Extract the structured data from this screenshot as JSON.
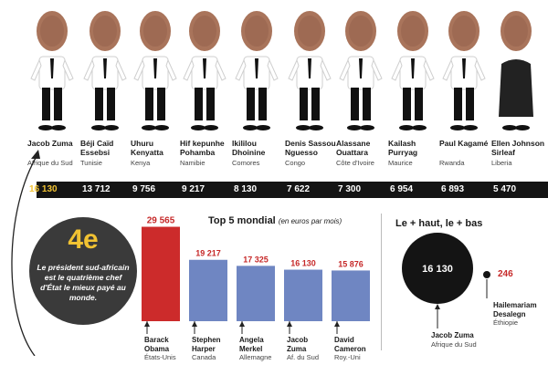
{
  "leaders": [
    {
      "name": "Jacob Zuma",
      "country": "Afrique du Sud",
      "salary": "16 130",
      "highlight": true
    },
    {
      "name": "Béji Caïd Essebsi",
      "country": "Tunisie",
      "salary": "13 712",
      "highlight": false
    },
    {
      "name": "Uhuru Kenyatta",
      "country": "Kenya",
      "salary": "9 756",
      "highlight": false
    },
    {
      "name": "Hif kepunhe Pohamba",
      "country": "Namibie",
      "salary": "9 217",
      "highlight": false
    },
    {
      "name": "Ikililou Dhoinine",
      "country": "Comores",
      "salary": "8 130",
      "highlight": false
    },
    {
      "name": "Denis Sassou Nguesso",
      "country": "Congo",
      "salary": "7 622",
      "highlight": false
    },
    {
      "name": "Alassane Ouattara",
      "country": "Côte d'Ivoire",
      "salary": "7 300",
      "highlight": false
    },
    {
      "name": "Kailash Purryag",
      "country": "Maurice",
      "salary": "6 954",
      "highlight": false
    },
    {
      "name": "Paul Kagamé",
      "country": "Rwanda",
      "salary": "6 893",
      "highlight": false
    },
    {
      "name": "Ellen Johnson Sirleaf",
      "country": "Liberia",
      "salary": "5 470",
      "highlight": false
    }
  ],
  "callout": {
    "rank": "4e",
    "text": "Le président sud-africain est le quatrième chef d'État le mieux payé au monde."
  },
  "top5": {
    "title": "Top 5 mondial",
    "subtitle": "(en euros par mois)"
  },
  "extremes": {
    "title": "Le + haut, le + bas",
    "high": {
      "name": "Jacob Zuma",
      "country": "Afrique du Sud",
      "value": "16 130"
    },
    "low": {
      "name": "Hailemariam Desalegn",
      "country": "Éthiopie",
      "value": "246"
    }
  },
  "colors": {
    "highlight": "#cc2b2b",
    "bars": "#6f86c2",
    "dark": "#141414",
    "gold": "#f1c232"
  },
  "chart_data": {
    "type": "bar",
    "title": "Top 5 mondial",
    "subtitle": "(en euros par mois)",
    "categories": [
      "Barack Obama",
      "Stephen Harper",
      "Angela Merkel",
      "Jacob Zuma",
      "David Cameron"
    ],
    "countries": [
      "États-Unis",
      "Canada",
      "Allemagne",
      "Af. du Sud",
      "Roy.-Uni"
    ],
    "values": [
      29565,
      19217,
      17325,
      16130,
      15876
    ],
    "labels": [
      "29 565",
      "19 217",
      "17 325",
      "16 130",
      "15 876"
    ],
    "ylim": [
      0,
      30000
    ],
    "xlabel": "",
    "ylabel": ""
  }
}
